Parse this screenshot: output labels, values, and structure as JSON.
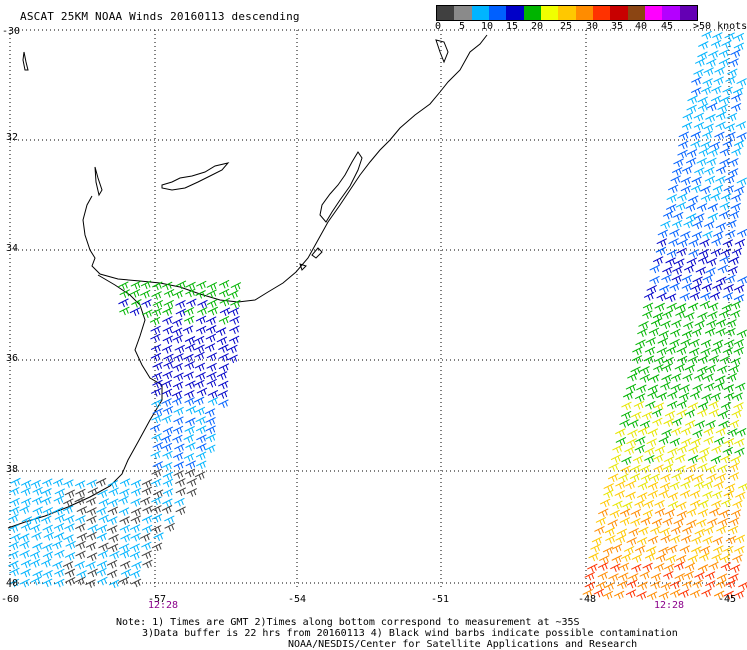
{
  "title": "ASCAT 25KM NOAA Winds 20160113 descending",
  "legend": {
    "colors": [
      "#404040",
      "#8a8a8a",
      "#00b4ff",
      "#0060ff",
      "#0000c8",
      "#00b400",
      "#f0ff00",
      "#ffc800",
      "#ff8c00",
      "#ff3200",
      "#c80000",
      "#8b4513",
      "#ff00ff",
      "#b400ff",
      "#6400b4"
    ],
    "labels": [
      "0",
      "5",
      "10",
      "15",
      "20",
      "25",
      "30",
      "35",
      "40",
      "45"
    ],
    "units": ">50 knots"
  },
  "lat_labels": [
    "-30",
    "32",
    "34",
    "36",
    "38",
    "40"
  ],
  "lon_labels": [
    "-60",
    "-57",
    "-54",
    "-51",
    "-48",
    "-45"
  ],
  "time_labels": [
    "12:28",
    "12:28"
  ],
  "notes": [
    "Note: 1) Times are GMT 2)Times along bottom correspond to measurement at ~35S",
    "3)Data buffer is 22 hrs from 20160113 4) Black wind barbs indicate possible contamination",
    "NOAA/NESDIS/Center for Satellite Applications and Research"
  ]
}
